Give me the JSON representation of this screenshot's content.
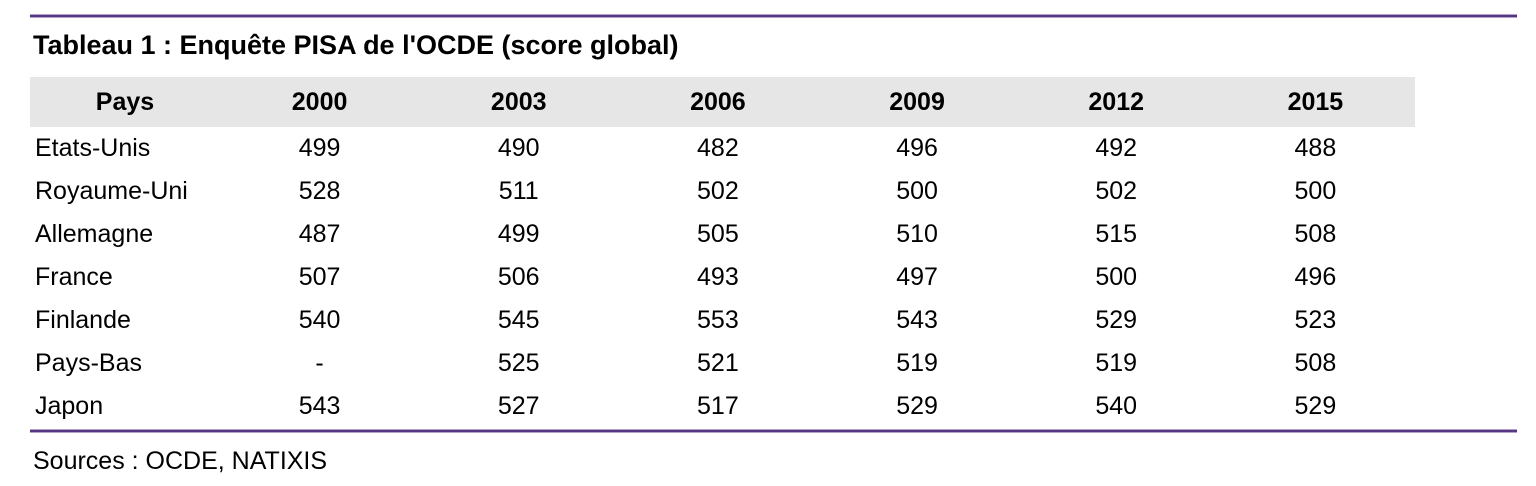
{
  "title": "Tableau 1 : Enquête PISA de l'OCDE (score global)",
  "sources_note": "Sources : OCDE, NATIXIS",
  "colors": {
    "rule_purple": "#573682",
    "rule_halo": "#b3a1c9",
    "header_bg": "#e6e6e6",
    "text": "#000000"
  },
  "table": {
    "columns": [
      "Pays",
      "2000",
      "2003",
      "2006",
      "2009",
      "2012",
      "2015"
    ],
    "rows": [
      {
        "country": "Etats-Unis",
        "values": [
          "499",
          "490",
          "482",
          "496",
          "492",
          "488"
        ]
      },
      {
        "country": "Royaume-Uni",
        "values": [
          "528",
          "511",
          "502",
          "500",
          "502",
          "500"
        ]
      },
      {
        "country": "Allemagne",
        "values": [
          "487",
          "499",
          "505",
          "510",
          "515",
          "508"
        ]
      },
      {
        "country": "France",
        "values": [
          "507",
          "506",
          "493",
          "497",
          "500",
          "496"
        ]
      },
      {
        "country": "Finlande",
        "values": [
          "540",
          "545",
          "553",
          "543",
          "529",
          "523"
        ]
      },
      {
        "country": "Pays-Bas",
        "values": [
          "-",
          "525",
          "521",
          "519",
          "519",
          "508"
        ]
      },
      {
        "country": "Japon",
        "values": [
          "543",
          "527",
          "517",
          "529",
          "540",
          "529"
        ]
      }
    ]
  },
  "chart_data": {
    "type": "table",
    "title": "Tableau 1 : Enquête PISA de l'OCDE (score global)",
    "categories": [
      "2000",
      "2003",
      "2006",
      "2009",
      "2012",
      "2015"
    ],
    "series": [
      {
        "name": "Etats-Unis",
        "values": [
          499,
          490,
          482,
          496,
          492,
          488
        ]
      },
      {
        "name": "Royaume-Uni",
        "values": [
          528,
          511,
          502,
          500,
          502,
          500
        ]
      },
      {
        "name": "Allemagne",
        "values": [
          487,
          499,
          505,
          510,
          515,
          508
        ]
      },
      {
        "name": "France",
        "values": [
          507,
          506,
          493,
          497,
          500,
          496
        ]
      },
      {
        "name": "Finlande",
        "values": [
          540,
          545,
          553,
          543,
          529,
          523
        ]
      },
      {
        "name": "Pays-Bas",
        "values": [
          null,
          525,
          521,
          519,
          519,
          508
        ]
      },
      {
        "name": "Japon",
        "values": [
          543,
          527,
          517,
          529,
          540,
          529
        ]
      }
    ],
    "source": "Sources : OCDE, NATIXIS",
    "notes": "Missing value for Pays-Bas in 2000 shown as '-'"
  }
}
